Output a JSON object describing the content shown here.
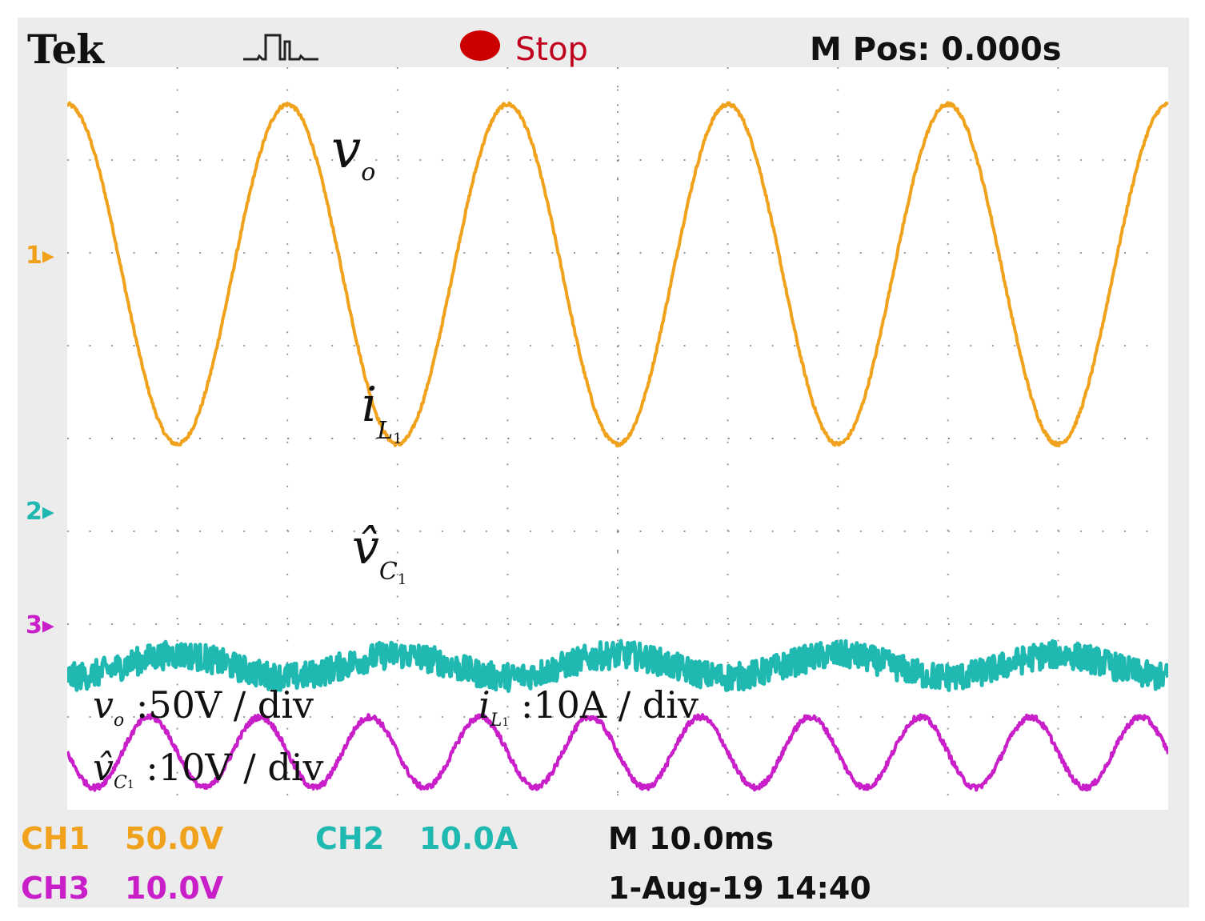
{
  "header": {
    "brand": "Tek",
    "acq_state": "Stop",
    "status_color": "#cc0000",
    "trigger_position": "M Pos: 0.000s",
    "trigger_icon": "trigger-pulse-icon",
    "trigger_marker_icon": "down-arrow-icon"
  },
  "channels": {
    "ch1": {
      "marker": "1",
      "label": "CH1",
      "scale": "50.0V",
      "color": "#f0a21c"
    },
    "ch2": {
      "marker": "2",
      "label": "CH2",
      "scale": "10.0A",
      "color": "#1fb9b2"
    },
    "ch3": {
      "marker": "3",
      "label": "CH3",
      "scale": "10.0V",
      "color": "#c81fc8"
    }
  },
  "timebase": {
    "label": "M 10.0ms",
    "date": "1-Aug-19 14:40"
  },
  "annotations": {
    "vo": {
      "sym": "v",
      "sub": "o"
    },
    "iL1": {
      "sym": "i",
      "sub": "L",
      "subsub": "1"
    },
    "vC1": {
      "sym": "v̂",
      "sub": "C",
      "subsub": "1"
    }
  },
  "scale_notes": {
    "vo_scale": ":50V / div",
    "iL1_scale": ":10A / div",
    "vC1_scale": ":10V / div"
  },
  "chart_data": {
    "type": "line",
    "x_unit": "ms",
    "xlim": [
      -50,
      50
    ],
    "divisions": {
      "x": 10,
      "y": 8
    },
    "grid": true,
    "series": [
      {
        "name": "vo",
        "channel": "CH1",
        "color": "#f0a21c",
        "unit": "V",
        "volts_per_div": 50,
        "offset_div": 1.77,
        "shape": "sine",
        "amplitude_div": 1.83,
        "frequency_hz": 50,
        "phase_deg": 180,
        "noise_div": 0.02
      },
      {
        "name": "iL1",
        "channel": "CH2",
        "color": "#1fb9b2",
        "unit": "A",
        "volts_per_div": 10,
        "offset_div": -2.45,
        "shape": "sine",
        "amplitude_div": 0.12,
        "frequency_hz": 50,
        "phase_deg": 0,
        "noise_div": 0.15
      },
      {
        "name": "vC1",
        "channel": "CH3",
        "color": "#c81fc8",
        "unit": "V",
        "volts_per_div": 10,
        "offset_div": -3.38,
        "shape": "sine",
        "amplitude_div": 0.38,
        "frequency_hz": 100,
        "phase_deg": 90,
        "noise_div": 0.03
      }
    ]
  }
}
